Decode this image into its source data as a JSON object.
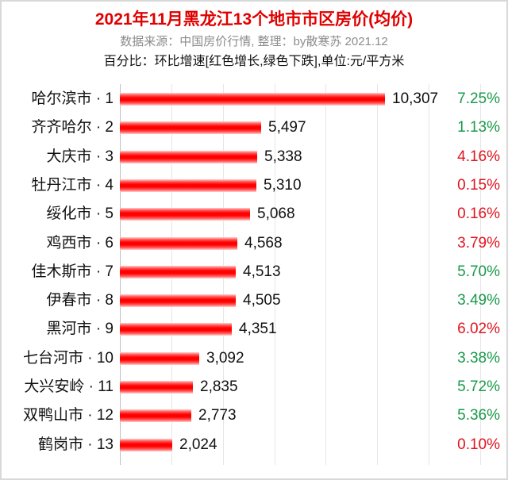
{
  "header": {
    "title": "2021年11月黑龙江13个地市市区房价(均价)",
    "subtitle": "数据来源：中国房价行情, 整理：by散寒苏 2021.12",
    "note": "百分比：环比增速[红色增长,绿色下跌],单位:元/平方米"
  },
  "colors": {
    "bar": "#ff0000",
    "increase": "#e0141e",
    "decrease": "#1a9a4a",
    "title": "#e00000"
  },
  "chart_data": {
    "type": "bar",
    "orientation": "horizontal",
    "title": "2021年11月黑龙江13个地市市区房价(均价)",
    "subtitle": "数据来源：中国房价行情, 整理：by散寒苏 2021.12",
    "annotation": "百分比：环比增速[红色增长,绿色下跌],单位:元/平方米",
    "xlabel": "",
    "ylabel": "",
    "xlim": [
      0,
      14000
    ],
    "grid": true,
    "gridlines": [
      0,
      2000,
      4000,
      6000,
      8000,
      10000,
      12000,
      14000
    ],
    "unit": "元/平方米",
    "categories": [
      "哈尔滨市 · 1",
      "齐齐哈尔 · 2",
      "大庆市 · 3",
      "牡丹江市 · 4",
      "绥化市 · 5",
      "鸡西市 · 6",
      "佳木斯市 · 7",
      "伊春市 · 8",
      "黑河市 · 9",
      "七台河市 · 10",
      "大兴安岭 · 11",
      "双鸭山市 · 12",
      "鹤岗市 · 13"
    ],
    "values": [
      10307,
      5497,
      5338,
      5310,
      5068,
      4568,
      4513,
      4505,
      4351,
      3092,
      2835,
      2773,
      2024
    ],
    "value_labels": [
      "10,307",
      "5,497",
      "5,338",
      "5,310",
      "5,068",
      "4,568",
      "4,513",
      "4,505",
      "4,351",
      "3,092",
      "2,835",
      "2,773",
      "2,024"
    ],
    "mom_change": [
      "7.25%",
      "1.13%",
      "4.16%",
      "0.15%",
      "0.16%",
      "3.79%",
      "5.70%",
      "3.49%",
      "6.02%",
      "3.38%",
      "5.72%",
      "5.36%",
      "0.10%"
    ],
    "mom_direction": [
      "down",
      "down",
      "up",
      "up",
      "up",
      "up",
      "down",
      "down",
      "up",
      "down",
      "down",
      "down",
      "up"
    ]
  }
}
